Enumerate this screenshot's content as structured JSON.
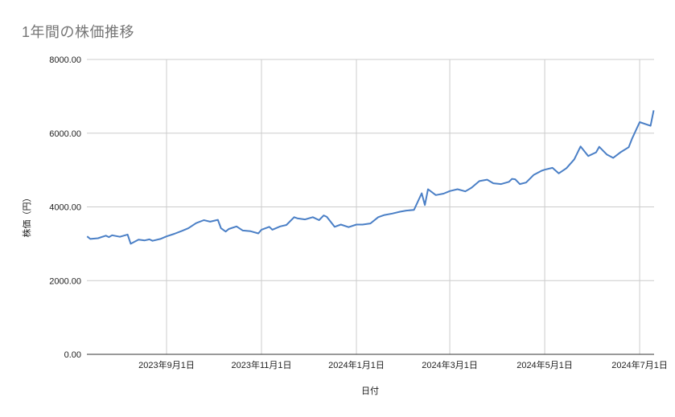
{
  "chart_data": {
    "type": "line",
    "title": "1年間の株価推移",
    "xlabel": "日付",
    "ylabel": "株価（円）",
    "ylim": [
      0,
      8000
    ],
    "yticks": [
      "0.00",
      "2000.00",
      "4000.00",
      "6000.00",
      "8000.00"
    ],
    "xticks": [
      "2023年9月1日",
      "2023年11月1日",
      "2024年1月1日",
      "2024年3月1日",
      "2024年5月1日",
      "2024年7月1日"
    ],
    "grid": true,
    "legend": "none",
    "line_color": "#4a7fc6",
    "series": [
      {
        "name": "株価",
        "x": [
          "2023-07-12",
          "2023-07-14",
          "2023-07-19",
          "2023-07-24",
          "2023-07-26",
          "2023-07-28",
          "2023-08-02",
          "2023-08-07",
          "2023-08-09",
          "2023-08-14",
          "2023-08-18",
          "2023-08-21",
          "2023-08-23",
          "2023-08-28",
          "2023-09-01",
          "2023-09-06",
          "2023-09-11",
          "2023-09-15",
          "2023-09-20",
          "2023-09-25",
          "2023-09-29",
          "2023-10-04",
          "2023-10-06",
          "2023-10-09",
          "2023-10-11",
          "2023-10-16",
          "2023-10-20",
          "2023-10-25",
          "2023-10-30",
          "2023-11-01",
          "2023-11-06",
          "2023-11-08",
          "2023-11-13",
          "2023-11-17",
          "2023-11-22",
          "2023-11-24",
          "2023-11-29",
          "2023-12-04",
          "2023-12-08",
          "2023-12-11",
          "2023-12-13",
          "2023-12-18",
          "2023-12-22",
          "2023-12-27",
          "2024-01-01",
          "2024-01-05",
          "2024-01-10",
          "2024-01-15",
          "2024-01-19",
          "2024-01-24",
          "2024-01-29",
          "2024-02-02",
          "2024-02-07",
          "2024-02-12",
          "2024-02-14",
          "2024-02-16",
          "2024-02-21",
          "2024-02-26",
          "2024-03-01",
          "2024-03-06",
          "2024-03-11",
          "2024-03-15",
          "2024-03-20",
          "2024-03-25",
          "2024-03-29",
          "2024-04-03",
          "2024-04-08",
          "2024-04-10",
          "2024-04-12",
          "2024-04-15",
          "2024-04-19",
          "2024-04-24",
          "2024-04-29",
          "2024-05-01",
          "2024-05-06",
          "2024-05-10",
          "2024-05-15",
          "2024-05-20",
          "2024-05-24",
          "2024-05-29",
          "2024-06-03",
          "2024-06-05",
          "2024-06-10",
          "2024-06-14",
          "2024-06-19",
          "2024-06-24",
          "2024-06-26",
          "2024-07-01",
          "2024-07-08",
          "2024-07-10"
        ],
        "values": [
          3200,
          3130,
          3150,
          3220,
          3180,
          3230,
          3190,
          3250,
          3000,
          3110,
          3090,
          3120,
          3080,
          3130,
          3200,
          3270,
          3350,
          3420,
          3560,
          3640,
          3600,
          3650,
          3420,
          3330,
          3400,
          3470,
          3360,
          3340,
          3280,
          3380,
          3460,
          3380,
          3470,
          3510,
          3720,
          3690,
          3660,
          3720,
          3640,
          3770,
          3730,
          3460,
          3520,
          3450,
          3520,
          3520,
          3550,
          3720,
          3780,
          3820,
          3870,
          3900,
          3920,
          4370,
          4050,
          4480,
          4320,
          4360,
          4430,
          4480,
          4420,
          4520,
          4700,
          4740,
          4640,
          4620,
          4680,
          4760,
          4750,
          4620,
          4660,
          4870,
          4980,
          5010,
          5060,
          4910,
          5050,
          5290,
          5640,
          5380,
          5480,
          5630,
          5420,
          5330,
          5490,
          5620,
          5840,
          6300,
          6200,
          6620
        ]
      }
    ]
  },
  "header": {
    "title": "1年間の株価推移"
  },
  "axes": {
    "xlabel": "日付",
    "ylabel": "株価（円）"
  }
}
